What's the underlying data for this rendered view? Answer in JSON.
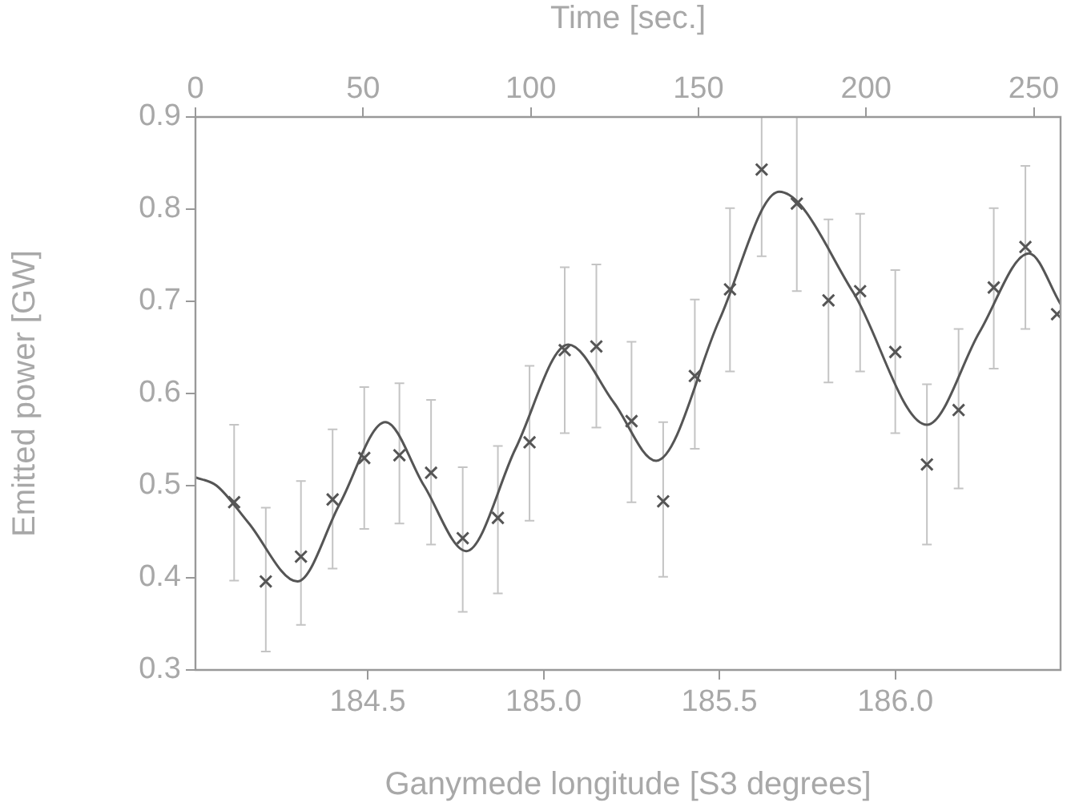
{
  "chart_data": {
    "type": "scatter",
    "xlabel": "Ganymede longitude [S3 degrees]",
    "ylabel": "Emitted power [GW]",
    "x2label": "Time [sec.]",
    "xlim": [
      184.01,
      186.47
    ],
    "xticks": [
      184.5,
      {
        "value": 185,
        "label": "185.0"
      },
      185.5,
      {
        "value": 186,
        "label": "186.0"
      }
    ],
    "x2lim": [
      0,
      258
    ],
    "x2ticks": [
      0,
      50,
      100,
      150,
      200,
      250
    ],
    "ylim": [
      0.3,
      0.9
    ],
    "yticks": [
      0.3,
      0.4,
      0.5,
      0.6,
      0.7,
      0.8,
      0.9
    ],
    "grid": false,
    "legend": false,
    "series": [
      {
        "type": "scatter",
        "marker": "cross",
        "color": "#555555",
        "x": [
          184.12,
          184.21,
          184.31,
          184.4,
          184.49,
          184.59,
          184.68,
          184.77,
          184.87,
          184.96,
          185.06,
          185.15,
          185.25,
          185.34,
          185.43,
          185.53,
          185.62,
          185.72,
          185.81,
          185.9,
          186.0,
          186.09,
          186.18,
          186.28,
          186.37,
          186.46
        ],
        "values": [
          0.482,
          0.396,
          0.423,
          0.485,
          0.53,
          0.533,
          0.514,
          0.443,
          0.465,
          0.547,
          0.647,
          0.651,
          0.57,
          0.483,
          0.619,
          0.713,
          0.843,
          0.806,
          0.701,
          0.711,
          0.645,
          0.523,
          0.582,
          0.715,
          0.759,
          0.686
        ],
        "errors": [
          [
            0.397,
            0.566
          ],
          [
            0.32,
            0.476
          ],
          [
            0.349,
            0.505
          ],
          [
            0.41,
            0.561
          ],
          [
            0.453,
            0.607
          ],
          [
            0.459,
            0.611
          ],
          [
            0.436,
            0.593
          ],
          [
            0.363,
            0.52
          ],
          [
            0.383,
            0.543
          ],
          [
            0.462,
            0.63
          ],
          [
            0.557,
            0.737
          ],
          [
            0.563,
            0.74
          ],
          [
            0.482,
            0.656
          ],
          [
            0.401,
            0.569
          ],
          [
            0.54,
            0.702
          ],
          [
            0.624,
            0.801
          ],
          [
            0.749,
            0.9
          ],
          [
            0.711,
            0.9
          ],
          [
            0.612,
            0.789
          ],
          [
            0.624,
            0.795
          ],
          [
            0.557,
            0.734
          ],
          [
            0.436,
            0.61
          ],
          [
            0.497,
            0.67
          ],
          [
            0.627,
            0.801
          ],
          [
            0.67,
            0.847
          ],
          null
        ]
      },
      {
        "type": "line",
        "color": "#555555",
        "x": [
          184.01,
          184.07,
          184.16,
          184.3,
          184.42,
          184.55,
          184.66,
          184.78,
          184.92,
          185.07,
          185.2,
          185.32,
          185.5,
          185.67,
          185.88,
          186.09,
          186.24,
          186.38,
          186.47
        ],
        "values": [
          0.509,
          0.5,
          0.46,
          0.396,
          0.48,
          0.569,
          0.5,
          0.429,
          0.54,
          0.653,
          0.59,
          0.527,
          0.68,
          0.819,
          0.71,
          0.566,
          0.667,
          0.752,
          0.697
        ]
      }
    ]
  }
}
